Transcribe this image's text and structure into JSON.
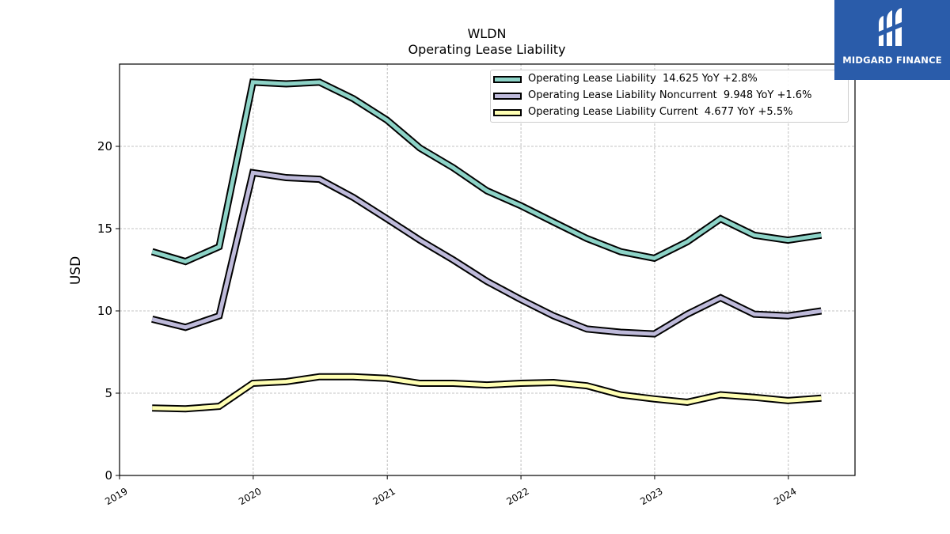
{
  "logo": {
    "text": "MIDGARD FINANCE"
  },
  "chart_data": {
    "type": "line",
    "title": "WLDN",
    "subtitle": "Operating Lease Liability",
    "ylabel": "USD",
    "xlabel": "",
    "ylim": [
      0,
      25
    ],
    "xlim": [
      "2019-01",
      "2024-07"
    ],
    "yticks": [
      0,
      5,
      10,
      15,
      20
    ],
    "xticks": [
      "2019",
      "2020",
      "2021",
      "2022",
      "2023",
      "2024"
    ],
    "grid": true,
    "legend_position": "top-right",
    "x": [
      "2019-03-31",
      "2019-06-30",
      "2019-09-30",
      "2019-12-31",
      "2020-03-31",
      "2020-06-30",
      "2020-09-30",
      "2020-12-31",
      "2021-03-31",
      "2021-06-30",
      "2021-09-30",
      "2021-12-31",
      "2022-03-31",
      "2022-06-30",
      "2022-09-30",
      "2022-12-31",
      "2023-03-31",
      "2023-06-30",
      "2023-09-30",
      "2023-12-31",
      "2024-03-31"
    ],
    "series": [
      {
        "name": "Operating Lease Liability",
        "legend_label": "Operating Lease Liability  14.625 YoY +2.8%",
        "color": "#8dd3c7",
        "values": [
          13.6,
          13.0,
          13.9,
          23.9,
          23.8,
          23.9,
          22.9,
          21.6,
          19.9,
          18.7,
          17.3,
          16.4,
          15.4,
          14.4,
          13.6,
          13.2,
          14.2,
          15.6,
          14.6,
          14.3,
          14.6
        ]
      },
      {
        "name": "Operating Lease Liability Noncurrent",
        "legend_label": "Operating Lease Liability Noncurrent  9.948 YoY +1.6%",
        "color": "#bebada",
        "values": [
          9.5,
          9.0,
          9.7,
          18.4,
          18.1,
          18.0,
          16.9,
          15.6,
          14.3,
          13.1,
          11.8,
          10.7,
          9.7,
          8.9,
          8.7,
          8.6,
          9.8,
          10.8,
          9.8,
          9.7,
          10.0
        ]
      },
      {
        "name": "Operating Lease Liability Current",
        "legend_label": "Operating Lease Liability Current  4.677 YoY +5.5%",
        "color": "#ffffb3",
        "values": [
          4.1,
          4.05,
          4.2,
          5.6,
          5.7,
          6.0,
          6.0,
          5.9,
          5.6,
          5.6,
          5.5,
          5.6,
          5.65,
          5.45,
          4.9,
          4.65,
          4.45,
          4.9,
          4.75,
          4.55,
          4.7
        ]
      }
    ]
  }
}
